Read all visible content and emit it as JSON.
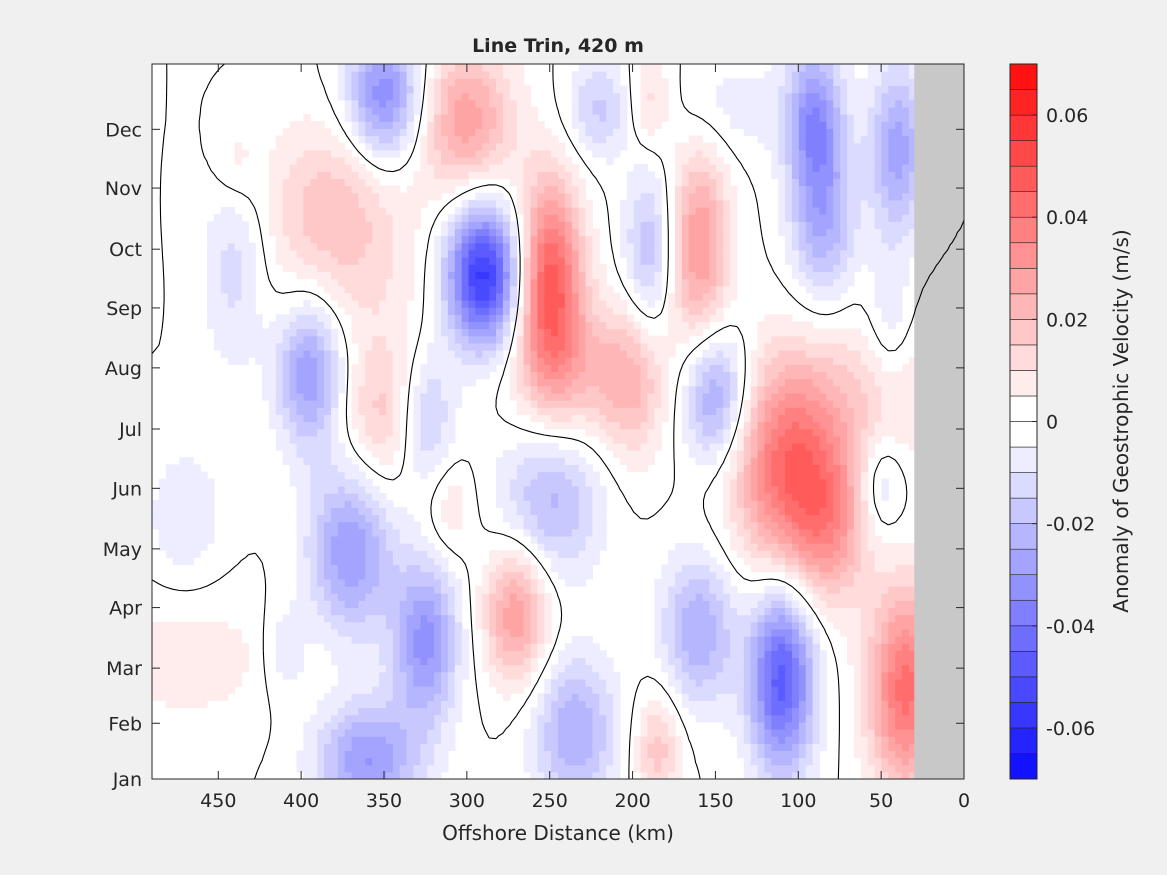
{
  "chart_data": {
    "type": "heatmap",
    "title": "Line Trin, 420 m",
    "xlabel": "Offshore Distance (km)",
    "ylabel": "",
    "xlim": [
      490,
      0
    ],
    "x_ticks": [
      {
        "value": 450,
        "label": "450"
      },
      {
        "value": 400,
        "label": "400"
      },
      {
        "value": 350,
        "label": "350"
      },
      {
        "value": 300,
        "label": "300"
      },
      {
        "value": 250,
        "label": "250"
      },
      {
        "value": 200,
        "label": "200"
      },
      {
        "value": 150,
        "label": "150"
      },
      {
        "value": 100,
        "label": "100"
      },
      {
        "value": 50,
        "label": "50"
      },
      {
        "value": 0,
        "label": "0"
      }
    ],
    "ylim": [
      0,
      11.93
    ],
    "y_ticks": [
      {
        "value": 0,
        "label": "Jan"
      },
      {
        "value": 0.93,
        "label": "Feb"
      },
      {
        "value": 1.85,
        "label": "Mar"
      },
      {
        "value": 2.86,
        "label": "Apr"
      },
      {
        "value": 3.84,
        "label": "May"
      },
      {
        "value": 4.85,
        "label": "Jun"
      },
      {
        "value": 5.84,
        "label": "Jul"
      },
      {
        "value": 6.86,
        "label": "Aug"
      },
      {
        "value": 7.86,
        "label": "Sep"
      },
      {
        "value": 8.84,
        "label": "Oct"
      },
      {
        "value": 9.86,
        "label": "Nov"
      },
      {
        "value": 10.84,
        "label": "Dec"
      }
    ],
    "no_data_region": {
      "x_from": 30,
      "x_to": 0,
      "color": "#c8c8c8"
    },
    "zero_contour": true,
    "colorbar": {
      "label": "Anomaly of Geostrophic Velocity (m/s)",
      "min": -0.07,
      "max": 0.07,
      "step": 0.005,
      "ticks": [
        {
          "value": 0.06,
          "label": "0.06"
        },
        {
          "value": 0.04,
          "label": "0.04"
        },
        {
          "value": 0.02,
          "label": "0.02"
        },
        {
          "value": 0,
          "label": "0"
        },
        {
          "value": -0.02,
          "label": "-0.02"
        },
        {
          "value": -0.04,
          "label": "-0.04"
        },
        {
          "value": -0.06,
          "label": "-0.06"
        }
      ]
    },
    "field_features": [
      {
        "x": 290,
        "y": 8.4,
        "sx": 16,
        "sy": 0.85,
        "value": -0.058
      },
      {
        "x": 250,
        "y": 8.3,
        "sx": 14,
        "sy": 1.2,
        "value": 0.048
      },
      {
        "x": 105,
        "y": 5.2,
        "sx": 24,
        "sy": 1.3,
        "value": 0.043
      },
      {
        "x": 80,
        "y": 4.2,
        "sx": 16,
        "sy": 0.9,
        "value": 0.02
      },
      {
        "x": 35,
        "y": 1.5,
        "sx": 16,
        "sy": 1.2,
        "value": 0.042
      },
      {
        "x": 110,
        "y": 1.7,
        "sx": 14,
        "sy": 1.1,
        "value": -0.048
      },
      {
        "x": 350,
        "y": 11.4,
        "sx": 16,
        "sy": 0.8,
        "value": -0.035
      },
      {
        "x": 300,
        "y": 11.0,
        "sx": 20,
        "sy": 0.9,
        "value": 0.028
      },
      {
        "x": 270,
        "y": 2.8,
        "sx": 14,
        "sy": 0.85,
        "value": 0.03
      },
      {
        "x": 325,
        "y": 2.3,
        "sx": 14,
        "sy": 0.95,
        "value": -0.032
      },
      {
        "x": 370,
        "y": 3.8,
        "sx": 18,
        "sy": 1.0,
        "value": -0.03
      },
      {
        "x": 395,
        "y": 6.8,
        "sx": 14,
        "sy": 0.9,
        "value": -0.03
      },
      {
        "x": 350,
        "y": 6.1,
        "sx": 18,
        "sy": 0.9,
        "value": 0.018
      },
      {
        "x": 325,
        "y": 6.0,
        "sx": 12,
        "sy": 0.8,
        "value": -0.02
      },
      {
        "x": 250,
        "y": 4.6,
        "sx": 22,
        "sy": 0.9,
        "value": -0.022
      },
      {
        "x": 160,
        "y": 8.9,
        "sx": 13,
        "sy": 1.2,
        "value": 0.03
      },
      {
        "x": 190,
        "y": 8.8,
        "sx": 11,
        "sy": 1.0,
        "value": -0.02
      },
      {
        "x": 150,
        "y": 6.4,
        "sx": 14,
        "sy": 0.8,
        "value": -0.03
      },
      {
        "x": 200,
        "y": 6.6,
        "sx": 14,
        "sy": 1.0,
        "value": 0.015
      },
      {
        "x": 230,
        "y": 6.8,
        "sx": 30,
        "sy": 0.8,
        "value": 0.016
      },
      {
        "x": 380,
        "y": 9.6,
        "sx": 30,
        "sy": 1.0,
        "value": 0.018
      },
      {
        "x": 440,
        "y": 8.6,
        "sx": 14,
        "sy": 1.2,
        "value": -0.014
      },
      {
        "x": 370,
        "y": 8.2,
        "sx": 40,
        "sy": 0.8,
        "value": 0.006
      },
      {
        "x": 90,
        "y": 11.0,
        "sx": 12,
        "sy": 0.9,
        "value": -0.03
      },
      {
        "x": 40,
        "y": 10.5,
        "sx": 12,
        "sy": 1.0,
        "value": -0.028
      },
      {
        "x": 85,
        "y": 9.3,
        "sx": 14,
        "sy": 1.0,
        "value": -0.024
      },
      {
        "x": 45,
        "y": 7.6,
        "sx": 10,
        "sy": 0.8,
        "value": -0.012
      },
      {
        "x": 50,
        "y": 6.5,
        "sx": 30,
        "sy": 1.0,
        "value": 0.012
      },
      {
        "x": 50,
        "y": 4.9,
        "sx": 10,
        "sy": 0.6,
        "value": -0.014
      },
      {
        "x": 235,
        "y": 0.8,
        "sx": 18,
        "sy": 0.9,
        "value": -0.025
      },
      {
        "x": 185,
        "y": 0.5,
        "sx": 10,
        "sy": 0.7,
        "value": 0.018
      },
      {
        "x": 160,
        "y": 2.5,
        "sx": 16,
        "sy": 0.9,
        "value": -0.025
      },
      {
        "x": 360,
        "y": 0.3,
        "sx": 22,
        "sy": 0.7,
        "value": -0.03
      },
      {
        "x": 470,
        "y": 2.0,
        "sx": 45,
        "sy": 0.8,
        "value": 0.008
      },
      {
        "x": 470,
        "y": 4.4,
        "sx": 16,
        "sy": 0.8,
        "value": -0.01
      },
      {
        "x": 220,
        "y": 11.2,
        "sx": 14,
        "sy": 0.6,
        "value": -0.016
      },
      {
        "x": 190,
        "y": 11.3,
        "sx": 10,
        "sy": 0.6,
        "value": 0.014
      },
      {
        "x": 140,
        "y": 11.2,
        "sx": 30,
        "sy": 0.6,
        "value": -0.008
      },
      {
        "x": 410,
        "y": 2.1,
        "sx": 10,
        "sy": 0.6,
        "value": -0.01
      },
      {
        "x": 310,
        "y": 4.5,
        "sx": 10,
        "sy": 0.6,
        "value": 0.01
      },
      {
        "x": 440,
        "y": 10.3,
        "sx": 10,
        "sy": 0.6,
        "value": 0.008
      }
    ]
  }
}
